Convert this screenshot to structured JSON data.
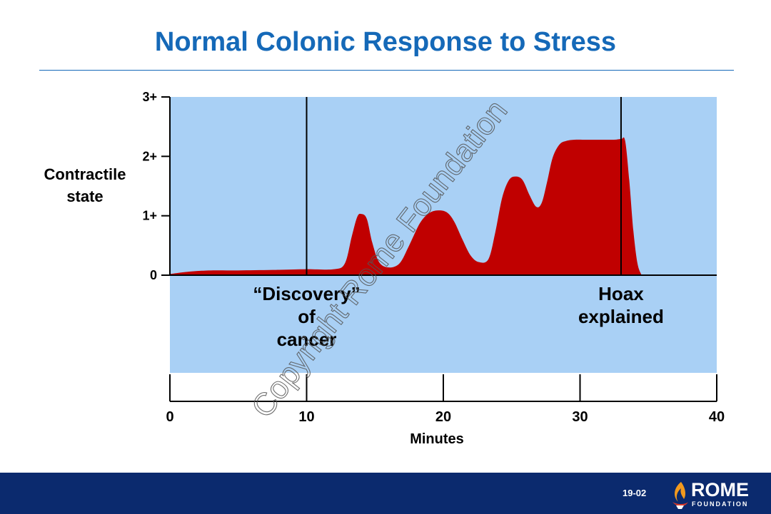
{
  "slide": {
    "title": "Normal Colonic Response to Stress",
    "number": "19-02",
    "watermark": "Copyright Rome Foundation",
    "logo": {
      "word": "ROME",
      "sub": "FOUNDATION"
    },
    "colors": {
      "title": "#1569b8",
      "footer": "#0b2a6e",
      "panel": "#a9d0f5",
      "area": "#c00000"
    }
  },
  "chart_data": {
    "type": "area",
    "title": "Normal Colonic Response to Stress",
    "xlabel": "Minutes",
    "ylabel": "Contractile state",
    "xlim": [
      0,
      40
    ],
    "ylim": [
      0,
      3
    ],
    "x_ticks": [
      0,
      10,
      20,
      30,
      40
    ],
    "x_tick_labels": [
      "0",
      "10",
      "20",
      "30",
      "40"
    ],
    "y_ticks": [
      0,
      1,
      2,
      3
    ],
    "y_tick_labels": [
      "0",
      "1+",
      "2+",
      "3+"
    ],
    "series": [
      {
        "x": [
          0,
          1,
          2,
          3,
          5,
          8,
          10,
          12,
          12.8,
          13.3,
          13.7,
          14,
          14.4,
          14.8,
          15.3,
          16,
          16.8,
          17.5,
          18.3,
          19,
          19.7,
          20.3,
          20.8,
          21.4,
          22,
          22.6,
          23.3,
          23.8,
          24.3,
          24.8,
          25.3,
          25.8,
          26.3,
          26.8,
          27.2,
          27.6,
          28,
          28.5,
          29,
          29.6,
          30.5,
          31.5,
          32.5,
          33,
          33.3,
          33.6,
          33.9,
          34.2,
          34.5
        ],
        "y": [
          0.02,
          0.05,
          0.07,
          0.08,
          0.08,
          0.09,
          0.1,
          0.1,
          0.2,
          0.65,
          0.98,
          1.03,
          0.95,
          0.55,
          0.22,
          0.13,
          0.2,
          0.5,
          0.88,
          1.05,
          1.09,
          1.05,
          0.9,
          0.6,
          0.33,
          0.22,
          0.27,
          0.72,
          1.3,
          1.6,
          1.66,
          1.6,
          1.35,
          1.15,
          1.22,
          1.58,
          1.98,
          2.2,
          2.26,
          2.28,
          2.28,
          2.28,
          2.28,
          2.29,
          2.26,
          1.6,
          0.75,
          0.2,
          0
        ]
      }
    ],
    "annotations": [
      {
        "x": 10,
        "lines": [
          "“Discovery”",
          "of",
          "cancer"
        ]
      },
      {
        "x": 33,
        "lines": [
          "Hoax",
          "explained"
        ]
      }
    ],
    "grid": false,
    "legend": "none"
  }
}
